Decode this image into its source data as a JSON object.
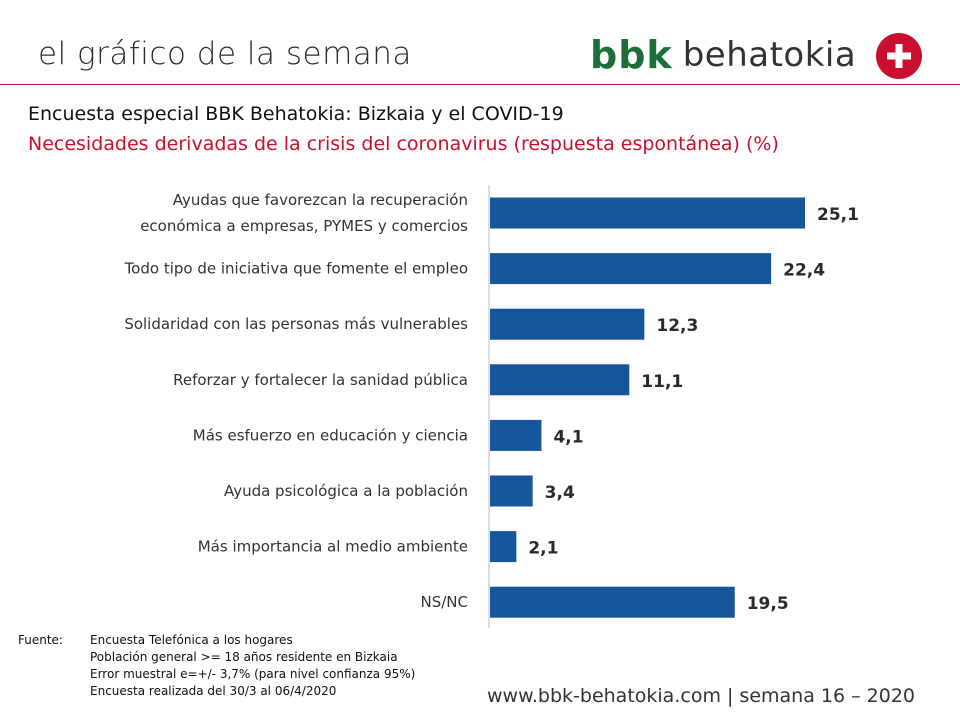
{
  "header": {
    "title": "el gráfico de la semana",
    "logo": {
      "bbk": "bbk",
      "name": "behatokia"
    }
  },
  "subtitle": "Encuesta especial BBK Behatokia: Bizkaia y el COVID-19",
  "chart_title": "Necesidades derivadas de la crisis del coronavirus (respuesta espontánea) (%)",
  "colors": {
    "bar": "#17569a",
    "accent": "#c8102e",
    "brand_green": "#1a6f3a"
  },
  "chart_data": {
    "type": "bar",
    "orientation": "horizontal",
    "title": "Necesidades derivadas de la crisis del coronavirus (respuesta espontánea) (%)",
    "unit": "%",
    "categories": [
      [
        "Ayudas que favorezcan la recuperación",
        "económica a empresas, PYMES y comercios"
      ],
      [
        "Todo tipo de iniciativa que fomente el empleo"
      ],
      [
        "Solidaridad con las personas más vulnerables"
      ],
      [
        "Reforzar y fortalecer la sanidad pública"
      ],
      [
        "Más esfuerzo en educación y ciencia"
      ],
      [
        "Ayuda psicológica a la población"
      ],
      [
        "Más importancia al medio ambiente"
      ],
      [
        "NS/NC"
      ]
    ],
    "values": [
      25.1,
      22.4,
      12.3,
      11.1,
      4.1,
      3.4,
      2.1,
      19.5
    ],
    "value_labels": [
      "25,1",
      "22,4",
      "12,3",
      "11,1",
      "4,1",
      "3,4",
      "2,1",
      "19,5"
    ],
    "xlim": [
      0,
      28
    ]
  },
  "footer": {
    "label": "Fuente:",
    "lines": [
      "Encuesta Telefónica a los hogares",
      "Población general >= 18 años residente en Bizkaia",
      "Error muestral e=+/- 3,7% (para nivel confianza 95%)",
      "Encuesta realizada del 30/3 al 06/4/2020"
    ]
  },
  "url": "www.bbk-behatokia.com | semana 16 – 2020"
}
